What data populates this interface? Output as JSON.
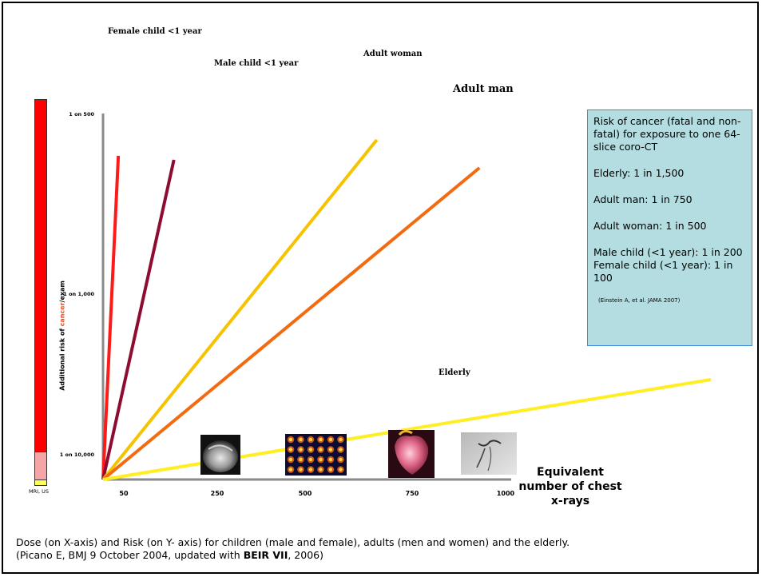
{
  "chart_data": {
    "type": "line",
    "xlabel_lines": [
      "Equivalent",
      "number of chest",
      "x-rays"
    ],
    "ylabel_parts": [
      "Additional risk of ",
      "cancer",
      "/exam"
    ],
    "x_ticks": [
      "50",
      "250",
      "500",
      "750",
      "1000"
    ],
    "y_ticks": [
      "1 on 10,000",
      "1 on 1,000",
      "1 on 500"
    ],
    "bar_label": "MRI, US",
    "annotations": [
      "Female child <1 year",
      "Male child <1 year",
      "Adult  woman",
      "Adult man",
      "Elderly"
    ],
    "series": [
      {
        "label_index": 0,
        "color": "#ff1a1a",
        "x": [
          0,
          38
        ],
        "y": [
          0,
          0.81
        ]
      },
      {
        "label_index": 1,
        "color": "#8e0b32",
        "x": [
          0,
          176
        ],
        "y": [
          0,
          0.8
        ]
      },
      {
        "label_index": 2,
        "color": "#f6c300",
        "x": [
          0,
          680
        ],
        "y": [
          0,
          0.85
        ]
      },
      {
        "label_index": 3,
        "color": "#f26b11",
        "x": [
          0,
          935
        ],
        "y": [
          0,
          0.78
        ]
      },
      {
        "label_index": 4,
        "color": "#ffee22",
        "x": [
          0,
          1510
        ],
        "y": [
          0,
          0.25
        ]
      }
    ]
  },
  "info_box": {
    "heading": "Risk of cancer (fatal and non-fatal) for exposure to one 64-slice coro-CT",
    "lines": [
      "Elderly: 1 in 1,500",
      "Adult man: 1 in 750",
      "Adult woman: 1 in 500",
      "Male child (<1 year): 1 in 200",
      "Female child (<1 year): 1 in 100"
    ],
    "citation": "(Einstein A, et al. JAMA 2007)"
  },
  "footnote": {
    "line1": "Dose (on X-axis) and Risk (on Y- axis) for children (male and female), adults (men and women) and the elderly.",
    "line2_pre": "(Picano E, BMJ 9 October 2004, updated  with ",
    "line2_bold": "BEIR VII",
    "line2_post": ", 2006)"
  }
}
